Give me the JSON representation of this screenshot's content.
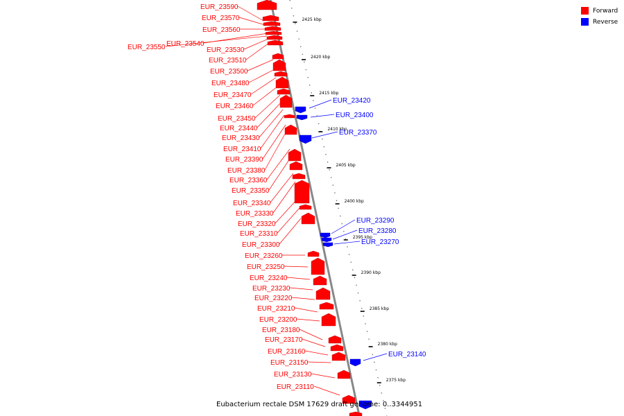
{
  "colors": {
    "forward": "#ff0000",
    "reverse": "#0000ff",
    "backbone": "#808080"
  },
  "legend": [
    {
      "label": "Forward",
      "color": "#ff0000"
    },
    {
      "label": "Reverse",
      "color": "#0000ff"
    }
  ],
  "caption": "Eubacterium rectale DSM 17629 draft genome: 0..3344951",
  "scale_labels": [
    "2425 kbp",
    "2420 kbp",
    "2415 kbp",
    "2410 kbp",
    "2405 kbp",
    "2400 kbp",
    "2395 kbp",
    "2390 kbp",
    "2385 kbp",
    "2380 kbp",
    "2375 kbp"
  ],
  "forward_genes": [
    "EUR_23590",
    "EUR_23570",
    "EUR_23560",
    "EUR_23550",
    "EUR_23540",
    "EUR_23530",
    "EUR_23510",
    "EUR_23500",
    "EUR_23480",
    "EUR_23470",
    "EUR_23460",
    "EUR_23450",
    "EUR_23440",
    "EUR_23430",
    "EUR_23410",
    "EUR_23390",
    "EUR_23380",
    "EUR_23360",
    "EUR_23350",
    "EUR_23340",
    "EUR_23330",
    "EUR_23320",
    "EUR_23310",
    "EUR_23300",
    "EUR_23260",
    "EUR_23250",
    "EUR_23240",
    "EUR_23230",
    "EUR_23220",
    "EUR_23210",
    "EUR_23200",
    "EUR_23180",
    "EUR_23170",
    "EUR_23160",
    "EUR_23150",
    "EUR_23130",
    "EUR_23110"
  ],
  "reverse_genes": [
    "EUR_23420",
    "EUR_23400",
    "EUR_23370",
    "EUR_23290",
    "EUR_23280",
    "EUR_23270",
    "EUR_23140"
  ]
}
